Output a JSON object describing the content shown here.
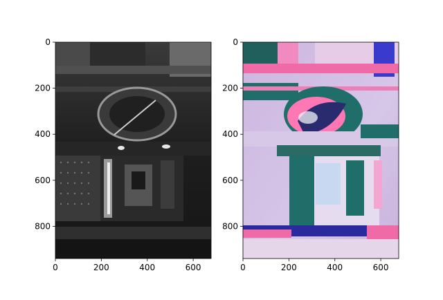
{
  "chart_data": [
    {
      "type": "heatmap",
      "panel": "grayscale",
      "image_content": "grayscale photo of a pressure cooker with lid on top, dark kitchen background",
      "xlim": [
        0,
        678
      ],
      "ylim": [
        940,
        0
      ],
      "xticks": [
        0,
        200,
        400,
        600
      ],
      "yticks": [
        0,
        200,
        400,
        600,
        800
      ],
      "colors": {
        "bg": "#2a2a2a",
        "dark": "#111111",
        "mid": "#5a5a5a",
        "light": "#d9d9d9"
      }
    },
    {
      "type": "heatmap",
      "panel": "false-color",
      "image_content": "false-color version of the same pressure cooker photo in pink, teal and lavender tones",
      "xlim": [
        0,
        678
      ],
      "ylim": [
        940,
        0
      ],
      "xticks": [
        0,
        200,
        400,
        600
      ],
      "yticks": [
        0,
        200,
        400,
        600,
        800
      ],
      "colors": {
        "bg": "#d8c8e8",
        "teal": "#1f6e6a",
        "pink": "#f06aa8",
        "blue": "#3a3acc",
        "light": "#e8dcf0"
      }
    }
  ]
}
